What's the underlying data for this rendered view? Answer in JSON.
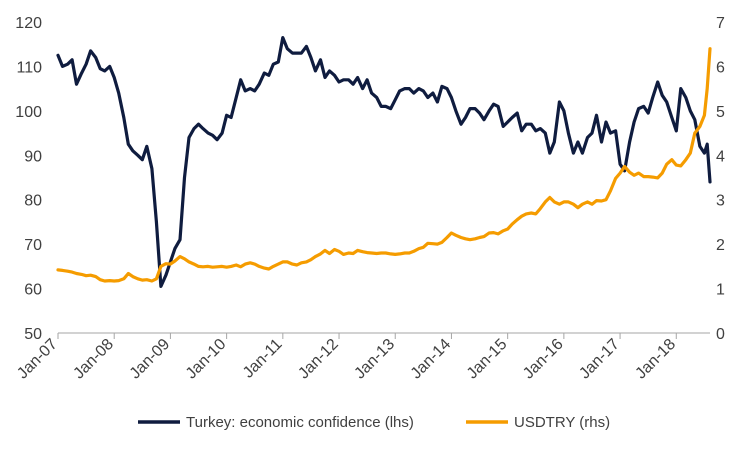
{
  "chart_data": {
    "type": "line",
    "title": "",
    "xlabel": "",
    "ylabel_left": "",
    "ylabel_right": "",
    "grid": false,
    "legend_position": "bottom",
    "x_ticks": [
      "Jan-07",
      "Jan-08",
      "Jan-09",
      "Jan-10",
      "Jan-11",
      "Jan-12",
      "Jan-13",
      "Jan-14",
      "Jan-15",
      "Jan-16",
      "Jan-17",
      "Jan-18"
    ],
    "x_range": [
      2007.0,
      2018.6
    ],
    "y_left": {
      "min": 50,
      "max": 120,
      "ticks": [
        "50",
        "60",
        "70",
        "80",
        "90",
        "100",
        "110",
        "120"
      ]
    },
    "y_right": {
      "min": 0,
      "max": 7,
      "ticks": [
        "0",
        "1",
        "2",
        "3",
        "4",
        "5",
        "6",
        "7"
      ]
    },
    "series": [
      {
        "name": "Turkey: economic confidence (lhs)",
        "axis": "left",
        "color": "#0f1c3f",
        "points": [
          [
            2007.0,
            112.5
          ],
          [
            2007.08,
            110
          ],
          [
            2007.17,
            110.5
          ],
          [
            2007.25,
            111.5
          ],
          [
            2007.33,
            106
          ],
          [
            2007.42,
            108.5
          ],
          [
            2007.5,
            110.5
          ],
          [
            2007.58,
            113.5
          ],
          [
            2007.67,
            112
          ],
          [
            2007.75,
            109.5
          ],
          [
            2007.83,
            109
          ],
          [
            2007.92,
            110
          ],
          [
            2008.0,
            107.5
          ],
          [
            2008.08,
            104
          ],
          [
            2008.17,
            98.5
          ],
          [
            2008.25,
            92.5
          ],
          [
            2008.33,
            91
          ],
          [
            2008.42,
            90
          ],
          [
            2008.5,
            89
          ],
          [
            2008.58,
            92
          ],
          [
            2008.67,
            87
          ],
          [
            2008.75,
            75
          ],
          [
            2008.83,
            60.5
          ],
          [
            2008.92,
            63
          ],
          [
            2009.0,
            66
          ],
          [
            2009.08,
            69
          ],
          [
            2009.17,
            71
          ],
          [
            2009.25,
            85
          ],
          [
            2009.33,
            94
          ],
          [
            2009.42,
            96
          ],
          [
            2009.5,
            97
          ],
          [
            2009.58,
            96
          ],
          [
            2009.67,
            95
          ],
          [
            2009.75,
            94.5
          ],
          [
            2009.83,
            93.5
          ],
          [
            2009.92,
            95
          ],
          [
            2010.0,
            99
          ],
          [
            2010.08,
            98.5
          ],
          [
            2010.17,
            103
          ],
          [
            2010.25,
            107
          ],
          [
            2010.33,
            104.5
          ],
          [
            2010.42,
            105
          ],
          [
            2010.5,
            104.5
          ],
          [
            2010.58,
            106
          ],
          [
            2010.67,
            108.5
          ],
          [
            2010.75,
            108
          ],
          [
            2010.83,
            110.5
          ],
          [
            2010.92,
            111
          ],
          [
            2011.0,
            116.5
          ],
          [
            2011.08,
            114
          ],
          [
            2011.17,
            113
          ],
          [
            2011.25,
            113
          ],
          [
            2011.33,
            113
          ],
          [
            2011.42,
            114.5
          ],
          [
            2011.5,
            112
          ],
          [
            2011.58,
            109
          ],
          [
            2011.67,
            111.5
          ],
          [
            2011.75,
            107.5
          ],
          [
            2011.83,
            109
          ],
          [
            2011.92,
            108
          ],
          [
            2012.0,
            106.5
          ],
          [
            2012.08,
            107
          ],
          [
            2012.17,
            107
          ],
          [
            2012.25,
            106
          ],
          [
            2012.33,
            107.5
          ],
          [
            2012.42,
            105
          ],
          [
            2012.5,
            107
          ],
          [
            2012.58,
            104
          ],
          [
            2012.67,
            103
          ],
          [
            2012.75,
            101
          ],
          [
            2012.83,
            101
          ],
          [
            2012.92,
            100.5
          ],
          [
            2013.0,
            102.5
          ],
          [
            2013.08,
            104.5
          ],
          [
            2013.17,
            105
          ],
          [
            2013.25,
            105
          ],
          [
            2013.33,
            104
          ],
          [
            2013.42,
            105
          ],
          [
            2013.5,
            104.5
          ],
          [
            2013.58,
            103
          ],
          [
            2013.67,
            104
          ],
          [
            2013.75,
            102
          ],
          [
            2013.83,
            105.5
          ],
          [
            2013.92,
            105
          ],
          [
            2014.0,
            103
          ],
          [
            2014.08,
            100
          ],
          [
            2014.17,
            97
          ],
          [
            2014.25,
            98.5
          ],
          [
            2014.33,
            100.5
          ],
          [
            2014.42,
            100.5
          ],
          [
            2014.5,
            99.5
          ],
          [
            2014.58,
            98
          ],
          [
            2014.67,
            100
          ],
          [
            2014.75,
            101.5
          ],
          [
            2014.83,
            101
          ],
          [
            2014.92,
            96.5
          ],
          [
            2015.0,
            97.5
          ],
          [
            2015.08,
            98.5
          ],
          [
            2015.17,
            99.5
          ],
          [
            2015.25,
            95.5
          ],
          [
            2015.33,
            97
          ],
          [
            2015.42,
            97
          ],
          [
            2015.5,
            95.5
          ],
          [
            2015.58,
            96
          ],
          [
            2015.67,
            95
          ],
          [
            2015.75,
            90.5
          ],
          [
            2015.83,
            93
          ],
          [
            2015.92,
            102
          ],
          [
            2016.0,
            100
          ],
          [
            2016.08,
            95
          ],
          [
            2016.17,
            90.5
          ],
          [
            2016.25,
            93
          ],
          [
            2016.33,
            90.5
          ],
          [
            2016.42,
            94
          ],
          [
            2016.5,
            95
          ],
          [
            2016.58,
            99
          ],
          [
            2016.67,
            93
          ],
          [
            2016.75,
            97.5
          ],
          [
            2016.83,
            95
          ],
          [
            2016.92,
            95.5
          ],
          [
            2017.0,
            88
          ],
          [
            2017.08,
            86.5
          ],
          [
            2017.17,
            93
          ],
          [
            2017.25,
            97.5
          ],
          [
            2017.33,
            100.5
          ],
          [
            2017.42,
            101
          ],
          [
            2017.5,
            99.5
          ],
          [
            2017.58,
            103
          ],
          [
            2017.67,
            106.5
          ],
          [
            2017.75,
            103.5
          ],
          [
            2017.83,
            102
          ],
          [
            2017.92,
            98.5
          ],
          [
            2018.0,
            95.5
          ],
          [
            2018.08,
            105
          ],
          [
            2018.17,
            103
          ],
          [
            2018.25,
            100
          ],
          [
            2018.33,
            98
          ],
          [
            2018.42,
            92
          ],
          [
            2018.5,
            90.5
          ],
          [
            2018.55,
            92.5
          ],
          [
            2018.6,
            84
          ]
        ]
      },
      {
        "name": "USDTRY (rhs)",
        "axis": "right",
        "color": "#f59c00",
        "points": [
          [
            2007.0,
            1.42
          ],
          [
            2007.08,
            1.41
          ],
          [
            2007.17,
            1.39
          ],
          [
            2007.25,
            1.37
          ],
          [
            2007.33,
            1.34
          ],
          [
            2007.42,
            1.32
          ],
          [
            2007.5,
            1.29
          ],
          [
            2007.58,
            1.3
          ],
          [
            2007.67,
            1.27
          ],
          [
            2007.75,
            1.2
          ],
          [
            2007.83,
            1.17
          ],
          [
            2007.92,
            1.18
          ],
          [
            2008.0,
            1.17
          ],
          [
            2008.08,
            1.18
          ],
          [
            2008.17,
            1.22
          ],
          [
            2008.25,
            1.34
          ],
          [
            2008.33,
            1.27
          ],
          [
            2008.42,
            1.22
          ],
          [
            2008.5,
            1.19
          ],
          [
            2008.58,
            1.2
          ],
          [
            2008.67,
            1.17
          ],
          [
            2008.75,
            1.22
          ],
          [
            2008.83,
            1.5
          ],
          [
            2008.92,
            1.56
          ],
          [
            2009.0,
            1.55
          ],
          [
            2009.08,
            1.62
          ],
          [
            2009.17,
            1.72
          ],
          [
            2009.25,
            1.67
          ],
          [
            2009.33,
            1.6
          ],
          [
            2009.42,
            1.55
          ],
          [
            2009.5,
            1.5
          ],
          [
            2009.58,
            1.49
          ],
          [
            2009.67,
            1.5
          ],
          [
            2009.75,
            1.48
          ],
          [
            2009.83,
            1.49
          ],
          [
            2009.92,
            1.5
          ],
          [
            2010.0,
            1.48
          ],
          [
            2010.08,
            1.5
          ],
          [
            2010.17,
            1.53
          ],
          [
            2010.25,
            1.49
          ],
          [
            2010.33,
            1.55
          ],
          [
            2010.42,
            1.58
          ],
          [
            2010.5,
            1.55
          ],
          [
            2010.58,
            1.5
          ],
          [
            2010.67,
            1.46
          ],
          [
            2010.75,
            1.44
          ],
          [
            2010.83,
            1.5
          ],
          [
            2010.92,
            1.55
          ],
          [
            2011.0,
            1.6
          ],
          [
            2011.08,
            1.6
          ],
          [
            2011.17,
            1.55
          ],
          [
            2011.25,
            1.53
          ],
          [
            2011.33,
            1.58
          ],
          [
            2011.42,
            1.6
          ],
          [
            2011.5,
            1.65
          ],
          [
            2011.58,
            1.72
          ],
          [
            2011.67,
            1.78
          ],
          [
            2011.75,
            1.86
          ],
          [
            2011.83,
            1.79
          ],
          [
            2011.92,
            1.88
          ],
          [
            2012.0,
            1.84
          ],
          [
            2012.08,
            1.77
          ],
          [
            2012.17,
            1.8
          ],
          [
            2012.25,
            1.79
          ],
          [
            2012.33,
            1.86
          ],
          [
            2012.42,
            1.83
          ],
          [
            2012.5,
            1.81
          ],
          [
            2012.58,
            1.8
          ],
          [
            2012.67,
            1.79
          ],
          [
            2012.75,
            1.8
          ],
          [
            2012.83,
            1.8
          ],
          [
            2012.92,
            1.78
          ],
          [
            2013.0,
            1.77
          ],
          [
            2013.08,
            1.78
          ],
          [
            2013.17,
            1.8
          ],
          [
            2013.25,
            1.8
          ],
          [
            2013.33,
            1.84
          ],
          [
            2013.42,
            1.9
          ],
          [
            2013.5,
            1.93
          ],
          [
            2013.58,
            2.02
          ],
          [
            2013.67,
            2.01
          ],
          [
            2013.75,
            2.0
          ],
          [
            2013.83,
            2.04
          ],
          [
            2013.92,
            2.15
          ],
          [
            2014.0,
            2.25
          ],
          [
            2014.08,
            2.2
          ],
          [
            2014.17,
            2.15
          ],
          [
            2014.25,
            2.12
          ],
          [
            2014.33,
            2.1
          ],
          [
            2014.42,
            2.12
          ],
          [
            2014.5,
            2.15
          ],
          [
            2014.58,
            2.17
          ],
          [
            2014.67,
            2.25
          ],
          [
            2014.75,
            2.26
          ],
          [
            2014.83,
            2.23
          ],
          [
            2014.92,
            2.3
          ],
          [
            2015.0,
            2.34
          ],
          [
            2015.08,
            2.45
          ],
          [
            2015.17,
            2.55
          ],
          [
            2015.25,
            2.63
          ],
          [
            2015.33,
            2.68
          ],
          [
            2015.42,
            2.7
          ],
          [
            2015.5,
            2.68
          ],
          [
            2015.58,
            2.8
          ],
          [
            2015.67,
            2.95
          ],
          [
            2015.75,
            3.05
          ],
          [
            2015.83,
            2.95
          ],
          [
            2015.92,
            2.9
          ],
          [
            2016.0,
            2.95
          ],
          [
            2016.08,
            2.95
          ],
          [
            2016.17,
            2.9
          ],
          [
            2016.25,
            2.82
          ],
          [
            2016.33,
            2.9
          ],
          [
            2016.42,
            2.95
          ],
          [
            2016.5,
            2.9
          ],
          [
            2016.58,
            2.98
          ],
          [
            2016.67,
            2.97
          ],
          [
            2016.75,
            3.0
          ],
          [
            2016.83,
            3.2
          ],
          [
            2016.92,
            3.48
          ],
          [
            2017.0,
            3.6
          ],
          [
            2017.08,
            3.75
          ],
          [
            2017.17,
            3.62
          ],
          [
            2017.25,
            3.55
          ],
          [
            2017.33,
            3.6
          ],
          [
            2017.42,
            3.52
          ],
          [
            2017.5,
            3.52
          ],
          [
            2017.58,
            3.51
          ],
          [
            2017.67,
            3.49
          ],
          [
            2017.75,
            3.6
          ],
          [
            2017.83,
            3.8
          ],
          [
            2017.92,
            3.9
          ],
          [
            2018.0,
            3.78
          ],
          [
            2018.08,
            3.76
          ],
          [
            2018.17,
            3.9
          ],
          [
            2018.25,
            4.05
          ],
          [
            2018.33,
            4.5
          ],
          [
            2018.42,
            4.65
          ],
          [
            2018.5,
            4.9
          ],
          [
            2018.55,
            5.5
          ],
          [
            2018.6,
            6.4
          ]
        ]
      }
    ]
  }
}
